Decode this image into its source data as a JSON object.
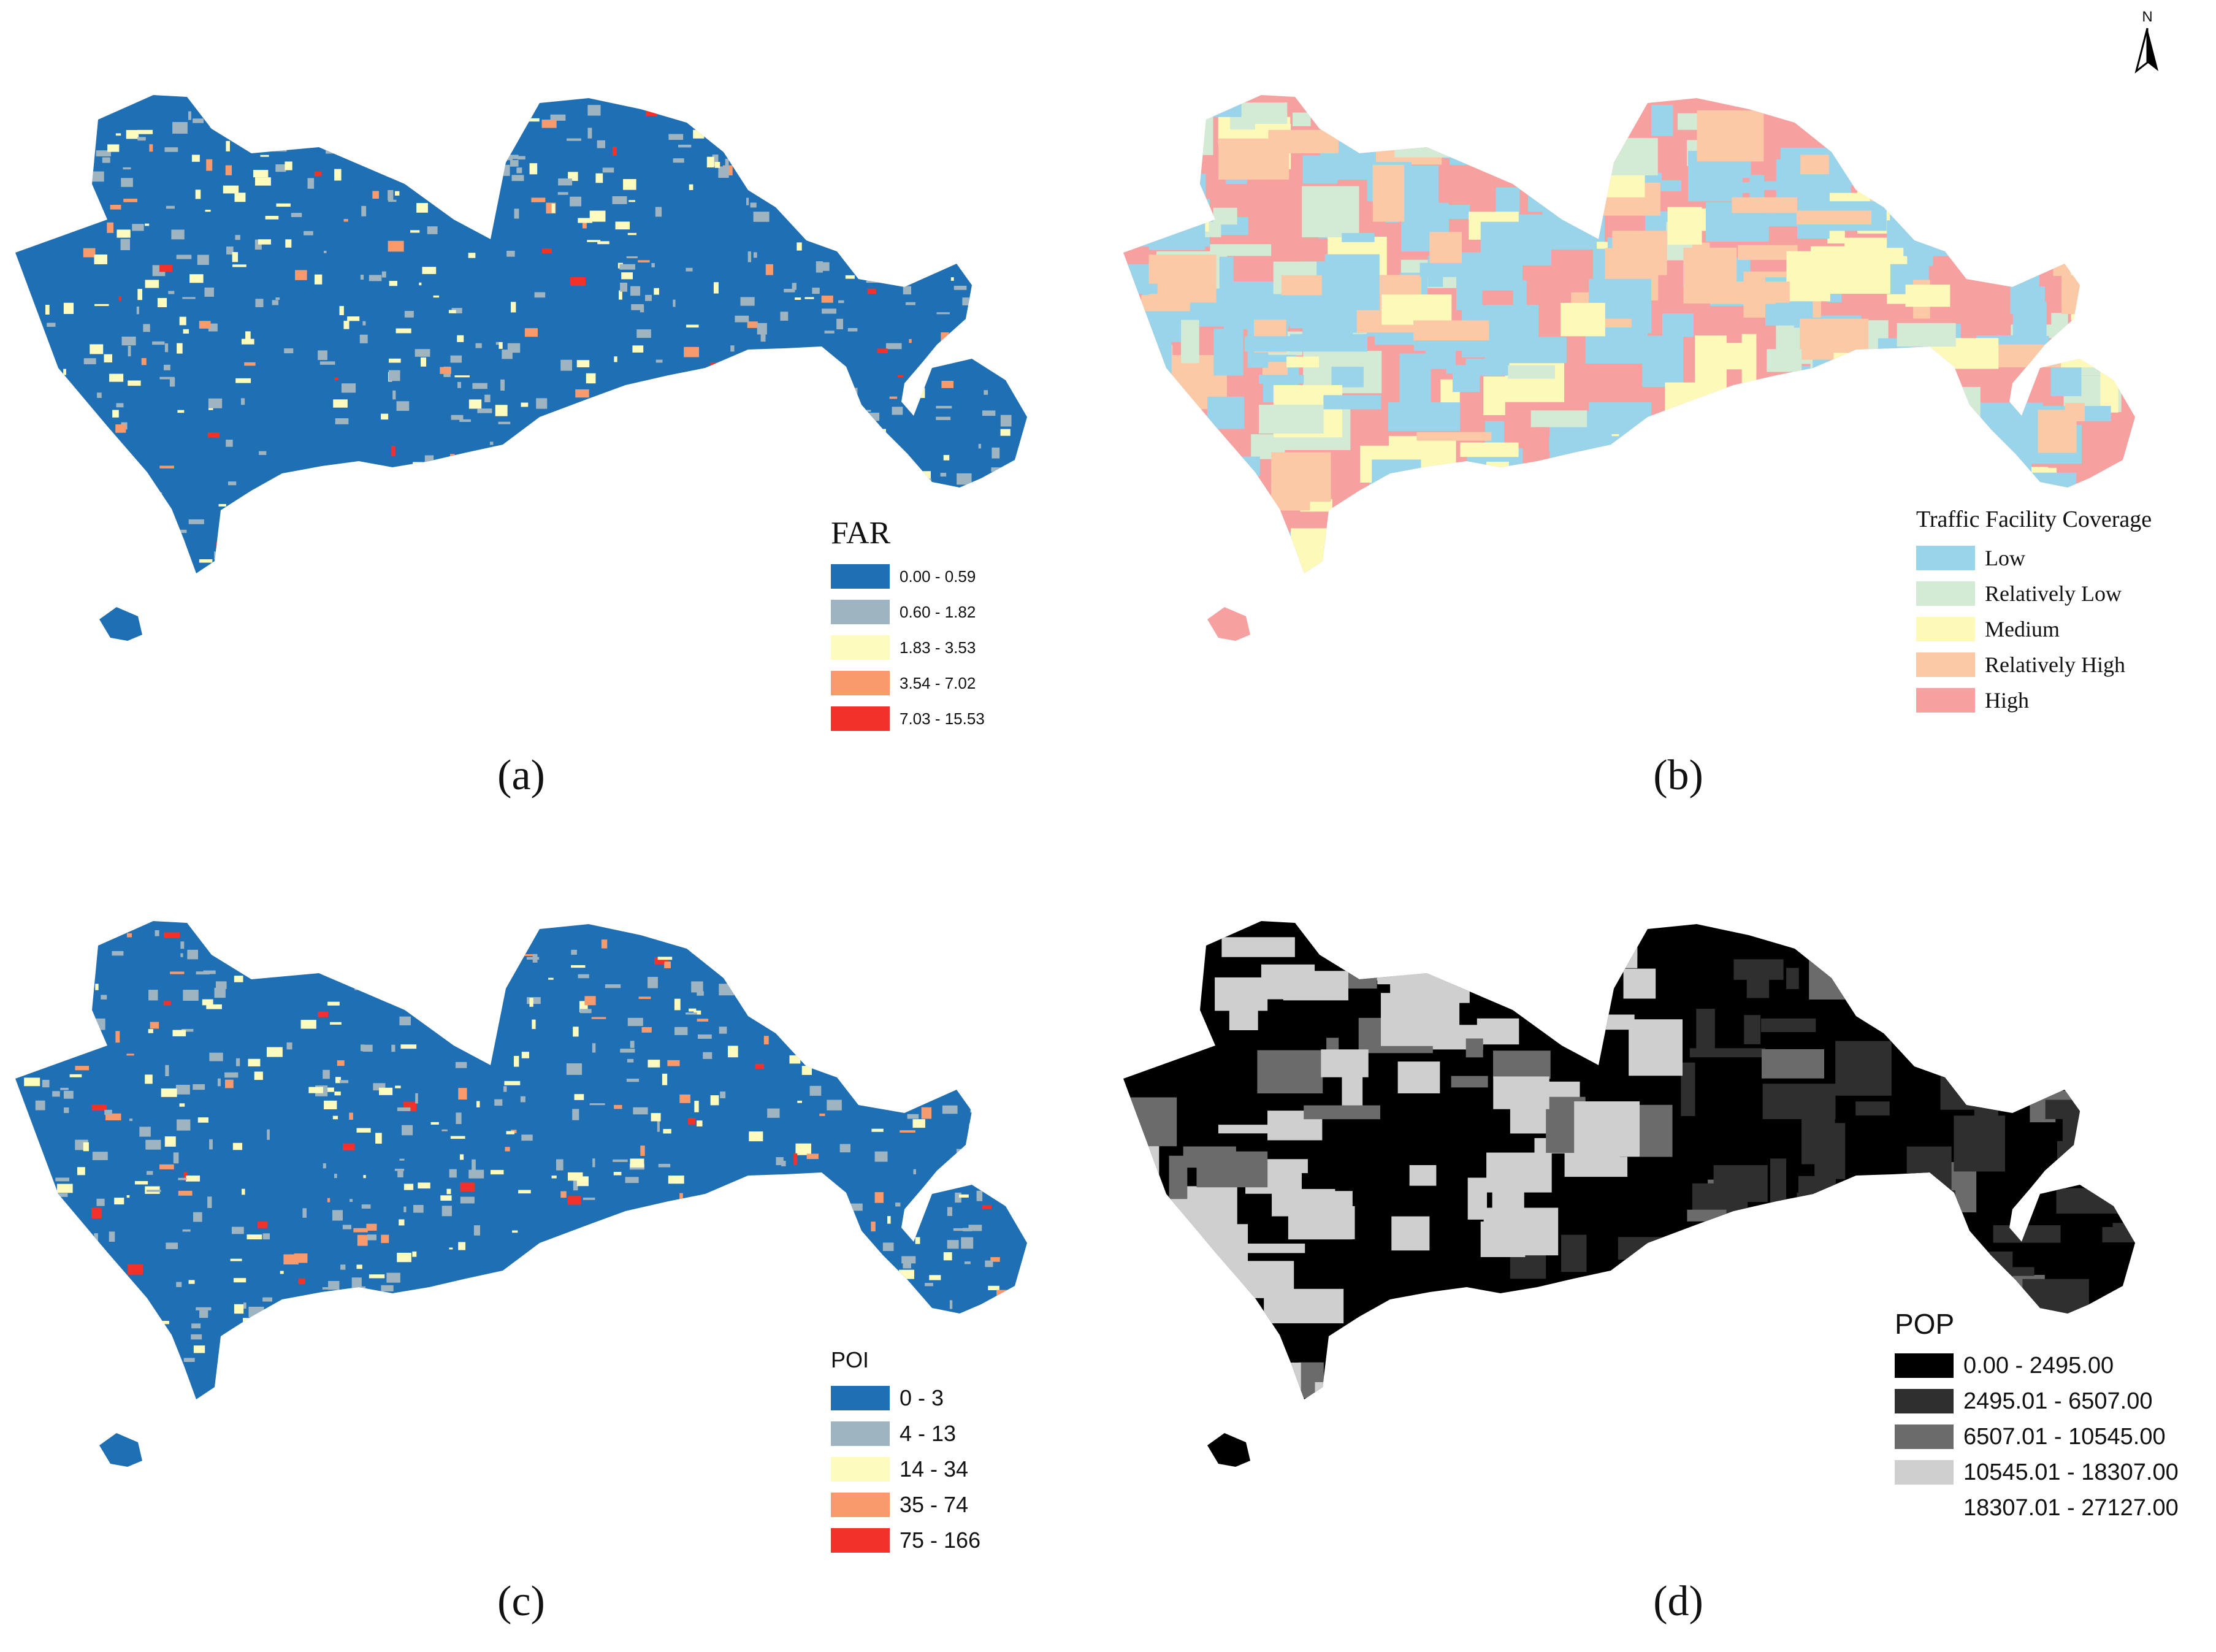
{
  "north_arrow": {
    "label": "N",
    "icon": "north-arrow-icon"
  },
  "panels": [
    {
      "caption": "(a)",
      "legend": {
        "title": "FAR",
        "items": [
          {
            "label": "0.00 - 0.59",
            "color": "#1f6fb4"
          },
          {
            "label": "0.60 - 1.82",
            "color": "#9eb4c1"
          },
          {
            "label": "1.83 - 3.53",
            "color": "#fdfbbe"
          },
          {
            "label": "3.54 - 7.02",
            "color": "#f99a6d"
          },
          {
            "label": "7.03 - 15.53",
            "color": "#f3312b"
          }
        ]
      },
      "map_base_color": "#1f6fb4",
      "map_texture_colors": [
        "#9eb4c1",
        "#fdfbbe",
        "#f99a6d",
        "#f3312b"
      ]
    },
    {
      "caption": "(b)",
      "legend": {
        "title": "Traffic Facility Coverage",
        "items": [
          {
            "label": "Low",
            "color": "#9ad4ea"
          },
          {
            "label": "Relatively Low",
            "color": "#d3ead5"
          },
          {
            "label": "Medium",
            "color": "#fdf9b9"
          },
          {
            "label": "Relatively High",
            "color": "#fcc9a6"
          },
          {
            "label": "High",
            "color": "#f7a0a0"
          }
        ]
      },
      "map_base_color": "#f7a0a0",
      "map_texture_colors": [
        "#9ad4ea",
        "#d3ead5",
        "#fdf9b9",
        "#fcc9a6"
      ]
    },
    {
      "caption": "(c)",
      "legend": {
        "title": "POI",
        "items": [
          {
            "label": "0 - 3",
            "color": "#1f6fb4"
          },
          {
            "label": "4 - 13",
            "color": "#9eb4c1"
          },
          {
            "label": "14 - 34",
            "color": "#fdfbbe"
          },
          {
            "label": "35 - 74",
            "color": "#f99a6d"
          },
          {
            "label": "75 - 166",
            "color": "#f3312b"
          }
        ]
      },
      "map_base_color": "#1f6fb4",
      "map_texture_colors": [
        "#9eb4c1",
        "#fdfbbe",
        "#f99a6d",
        "#f3312b"
      ]
    },
    {
      "caption": "(d)",
      "legend": {
        "title": "POP",
        "items": [
          {
            "label": "0.00 - 2495.00",
            "color": "#000000"
          },
          {
            "label": "2495.01 - 6507.00",
            "color": "#2f2f2f"
          },
          {
            "label": "6507.01 - 10545.00",
            "color": "#6b6b6b"
          },
          {
            "label": "10545.01 - 18307.00",
            "color": "#cfcfcf"
          },
          {
            "label": "18307.01 - 27127.00",
            "color": "#ffffff"
          }
        ]
      },
      "map_base_color": "#000000",
      "map_texture_colors": [
        "#2f2f2f",
        "#6b6b6b",
        "#cfcfcf",
        "#ffffff"
      ]
    }
  ]
}
